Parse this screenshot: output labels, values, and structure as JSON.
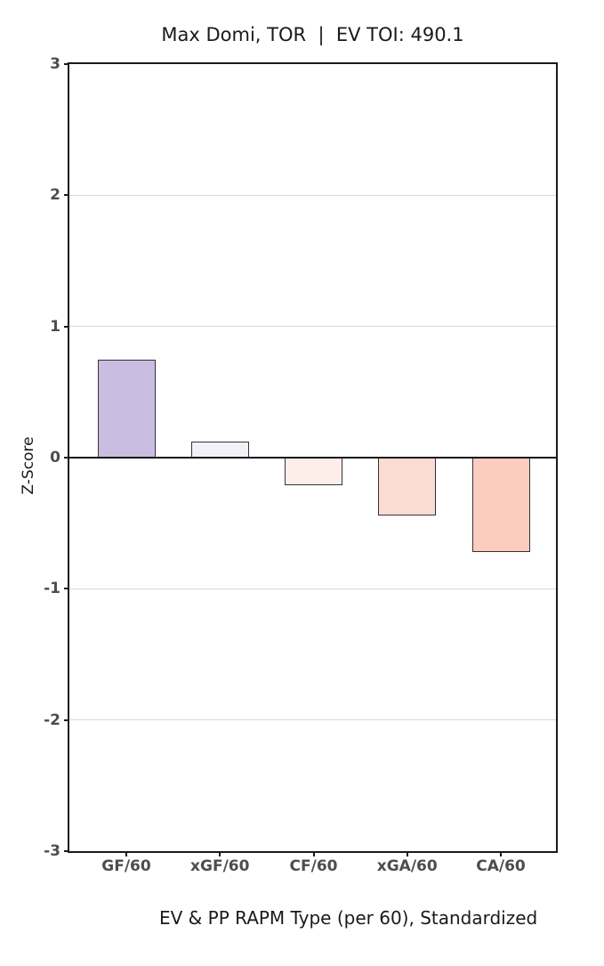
{
  "title": "Max Domi, TOR  |  EV TOI: 490.1",
  "chart_data": {
    "type": "bar",
    "title": "Max Domi, TOR  |  EV TOI: 490.1",
    "categories": [
      "GF/60",
      "xGF/60",
      "CF/60",
      "xGA/60",
      "CA/60"
    ],
    "values": [
      0.75,
      0.12,
      -0.21,
      -0.44,
      -0.72
    ],
    "bar_colors": [
      "#c9bee1",
      "#f3f0f8",
      "#fdeeea",
      "#fcdcd2",
      "#fdccc0"
    ],
    "bar_edge_color": "#333333",
    "xlabel": "EV & PP RAPM Type (per 60), Standardized",
    "ylabel": "Z-Score",
    "ylim": [
      -3,
      3
    ],
    "yticks": [
      3,
      2,
      1,
      0,
      -1,
      -2,
      -3
    ],
    "grid": "horizontal",
    "gridline_color": "#d9d9d9",
    "zero_line": true,
    "zero_line_color": "#111111",
    "legend": "none"
  }
}
